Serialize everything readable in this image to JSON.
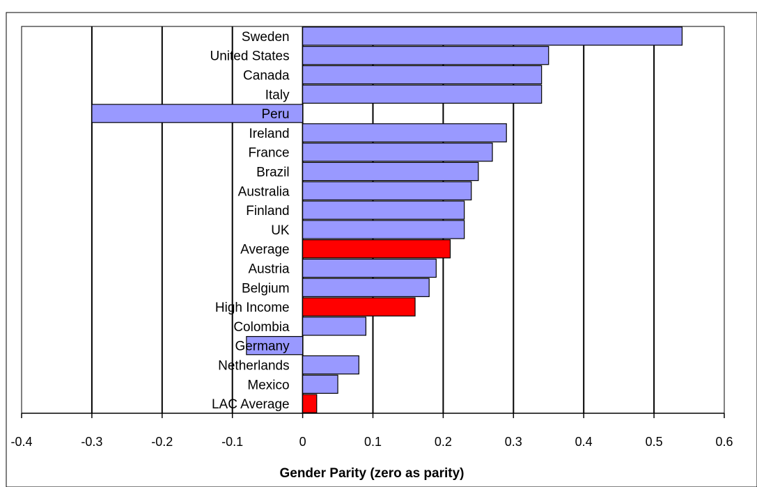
{
  "chart_data": {
    "type": "bar",
    "orientation": "horizontal",
    "categories": [
      "Sweden",
      "United States",
      "Canada",
      "Italy",
      "Peru",
      "Ireland",
      "France",
      "Brazil",
      "Australia",
      "Finland",
      "UK",
      "Average",
      "Austria",
      "Belgium",
      "High Income",
      "Colombia",
      "Germany",
      "Netherlands",
      "Mexico",
      "LAC Average"
    ],
    "series": [
      {
        "values": [
          0.54,
          0.35,
          0.34,
          0.34,
          -0.3,
          0.29,
          0.27,
          0.25,
          0.24,
          0.23,
          0.23,
          0.21,
          0.19,
          0.18,
          0.16,
          0.09,
          -0.08,
          0.08,
          0.05,
          0.02
        ]
      }
    ],
    "highlighted": [
      "Average",
      "High Income",
      "LAC Average"
    ],
    "xlabel": "Gender Parity  (zero as parity)",
    "xlim": [
      -0.4,
      0.6
    ],
    "xticks": [
      -0.4,
      -0.3,
      -0.2,
      -0.1,
      0,
      0.1,
      0.2,
      0.3,
      0.4,
      0.5,
      0.6
    ],
    "xtick_labels": [
      "-0.4",
      "-0.3",
      "-0.2",
      "-0.1",
      "0",
      "0.1",
      "0.2",
      "0.3",
      "0.4",
      "0.5",
      "0.6"
    ],
    "grid": "vertical",
    "legend": "none",
    "colors": {
      "bar": "#9999ff",
      "highlight": "#ff0000",
      "outline": "#000000"
    }
  }
}
